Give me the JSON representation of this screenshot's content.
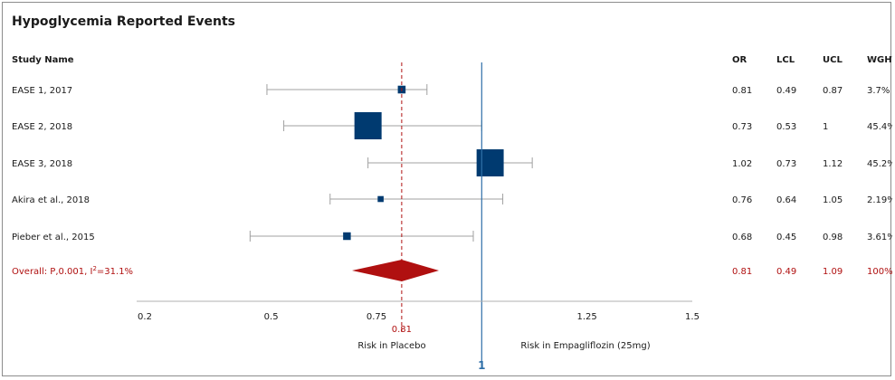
{
  "chart_data": {
    "type": "forest",
    "title": "Hypoglycemia Reported Events",
    "column_headers": {
      "study": "Study Name",
      "or": "OR",
      "lcl": "LCL",
      "ucl": "UCL",
      "weight": "WGHT"
    },
    "studies": [
      {
        "name": "EASE 1, 2017",
        "or": 0.81,
        "lcl": 0.49,
        "ucl": 0.87,
        "or_text": "0.81",
        "lcl_text": "0.49",
        "ucl_text": "0.87",
        "weight": 3.7,
        "weight_text": "3.7%"
      },
      {
        "name": "EASE 2, 2018",
        "or": 0.73,
        "lcl": 0.53,
        "ucl": 1,
        "or_text": "0.73",
        "lcl_text": "0.53",
        "ucl_text": "1",
        "weight": 45.4,
        "weight_text": "45.4%"
      },
      {
        "name": "EASE 3, 2018",
        "or": 1.02,
        "lcl": 0.73,
        "ucl": 1.12,
        "or_text": "1.02",
        "lcl_text": "0.73",
        "ucl_text": "1.12",
        "weight": 45.2,
        "weight_text": "45.2%"
      },
      {
        "name": "Akira et al., 2018",
        "or": 0.76,
        "lcl": 0.64,
        "ucl": 1.05,
        "or_text": "0.76",
        "lcl_text": "0.64",
        "ucl_text": "1.05",
        "weight": 2.19,
        "weight_text": "2.19%"
      },
      {
        "name": "Pieber et al., 2015",
        "or": 0.68,
        "lcl": 0.45,
        "ucl": 0.98,
        "or_text": "0.68",
        "lcl_text": "0.45",
        "ucl_text": "0.98",
        "weight": 3.61,
        "weight_text": "3.61%"
      }
    ],
    "overall": {
      "label": "Overall: P,0.001, I",
      "label_sup": "2",
      "label_suffix": "=31.1%",
      "or": 0.81,
      "lcl": 0.49,
      "ucl": 1.09,
      "or_text": "0.81",
      "lcl_text": "0.49",
      "ucl_text": "1.09",
      "weight_text": "100%"
    },
    "x_ticks": [
      {
        "value": 0.2,
        "label": "0.2"
      },
      {
        "value": 0.5,
        "label": "0.5"
      },
      {
        "value": 0.75,
        "label": "0.75"
      },
      {
        "value": 1.25,
        "label": "1.25"
      },
      {
        "value": 1.5,
        "label": "1.5"
      }
    ],
    "reference_line": {
      "value": 1,
      "label": "1"
    },
    "overall_line": {
      "value": 0.81,
      "label": "0.81"
    },
    "left_caption": "Risk in Placebo",
    "right_caption": "Risk in Empagliflozin (25mg)",
    "colors": {
      "marker": "#003a70",
      "overall": "#b01010",
      "ci_line": "#a0a0a0",
      "reference": "#2f6fa8",
      "axis": "#b0b0b0",
      "text": "#1a1a1a"
    }
  }
}
